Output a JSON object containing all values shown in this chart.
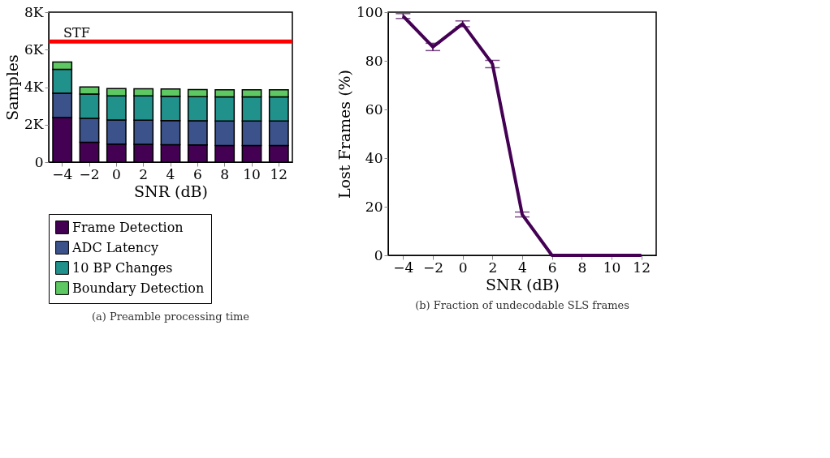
{
  "chart_data": [
    {
      "type": "bar",
      "stacked": true,
      "ylabel": "Samples",
      "xlabel": "SNR (dB)",
      "categories": [
        "−4",
        "−2",
        "0",
        "2",
        "4",
        "6",
        "8",
        "10",
        "12"
      ],
      "series": [
        {
          "name": "Frame Detection",
          "color": "#440154",
          "values": [
            2380,
            1060,
            960,
            950,
            930,
            920,
            890,
            890,
            890
          ]
        },
        {
          "name": "ADC Latency",
          "color": "#3b528b",
          "values": [
            1300,
            1270,
            1290,
            1290,
            1290,
            1290,
            1300,
            1300,
            1300
          ]
        },
        {
          "name": "10 BP Changes",
          "color": "#21918c",
          "values": [
            1270,
            1300,
            1290,
            1290,
            1290,
            1280,
            1290,
            1290,
            1290
          ]
        },
        {
          "name": "Boundary Detection",
          "color": "#5ec962",
          "values": [
            390,
            380,
            380,
            380,
            390,
            380,
            380,
            380,
            380
          ]
        }
      ],
      "ylim": [
        0,
        8000
      ],
      "yticks": [
        0,
        {
          "value": 2000,
          "label": "2K"
        },
        {
          "value": 4000,
          "label": "4K"
        },
        {
          "value": 6000,
          "label": "6K"
        },
        {
          "value": 8000,
          "label": "8K"
        }
      ],
      "ref_lines": [
        {
          "axis": "y",
          "value": 6430,
          "label": "STF",
          "color": "#ff0000"
        }
      ],
      "legend": "bottom",
      "grid": false,
      "annotations": [
        "(a) Preamble processing time"
      ]
    },
    {
      "type": "line",
      "ylabel": "Lost Frames (%)",
      "xlabel": "SNR (dB)",
      "x": [
        -4,
        -2,
        0,
        2,
        4,
        6,
        8,
        10,
        12
      ],
      "series": [
        {
          "color": "#440154",
          "values": [
            98.4,
            85.7,
            95.2,
            78.7,
            16.8,
            0,
            0,
            0,
            0
          ],
          "errors": [
            1,
            1.5,
            1.2,
            1.5,
            1,
            null,
            null,
            null,
            null
          ]
        }
      ],
      "xlim": [
        -5,
        13
      ],
      "xticks": [
        {
          "value": -4,
          "label": "−4"
        },
        {
          "value": -2,
          "label": "−2"
        },
        0,
        2,
        4,
        6,
        8,
        10,
        12
      ],
      "ylim": [
        0,
        100
      ],
      "yticks": [
        0,
        20,
        40,
        60,
        80,
        100
      ],
      "marker": "none",
      "line_style": "solid",
      "grid": false,
      "annotations": [
        "(b) Fraction of undecodable SLS frames"
      ]
    }
  ]
}
